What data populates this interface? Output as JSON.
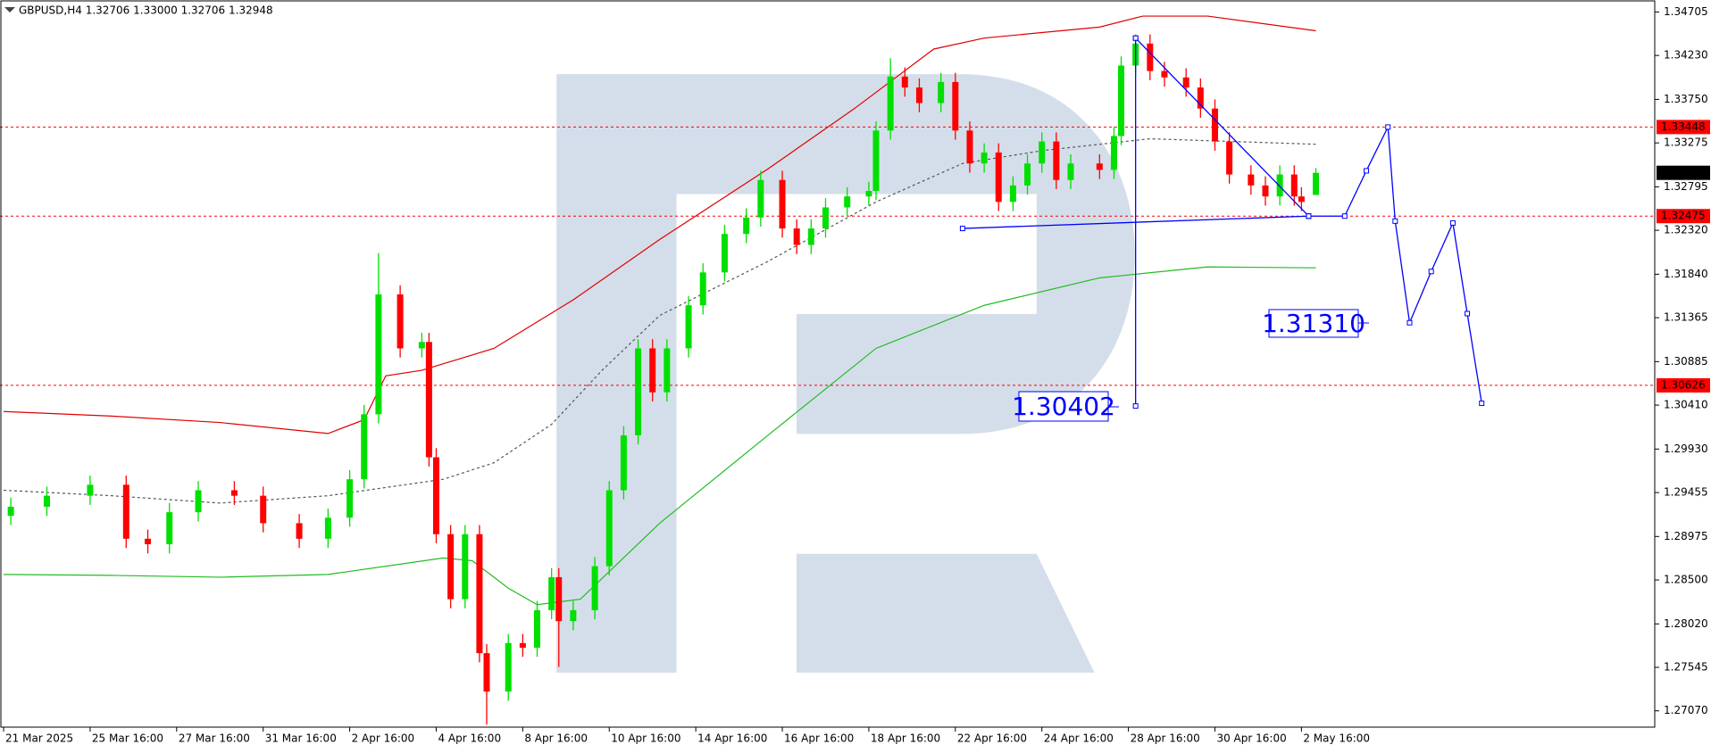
{
  "chart_data": {
    "type": "candlestick",
    "title": "GBPUSD,H4  1.32706 1.33000 1.32706 1.32948",
    "up_color": "#00e000",
    "down_color": "#ff0000",
    "x": [
      1,
      6,
      12,
      17,
      20,
      23,
      27,
      32,
      36,
      41,
      45,
      48,
      50,
      52,
      55,
      58,
      59,
      60,
      62,
      64,
      66,
      67,
      70,
      72,
      74,
      76,
      77,
      79,
      82,
      84,
      86,
      88,
      90,
      92,
      95,
      97,
      100,
      103,
      105,
      108,
      110,
      112,
      114,
      117,
      120,
      121,
      123,
      125,
      127,
      130,
      132,
      134,
      136,
      138,
      140,
      142,
      144,
      146,
      148,
      152,
      154,
      155,
      157,
      159,
      161,
      164,
      166,
      168,
      170,
      173,
      175,
      177,
      179,
      180,
      182
    ],
    "open": [
      1.292,
      1.293,
      1.2942,
      1.2954,
      1.2895,
      1.2889,
      1.2924,
      1.2948,
      1.2942,
      1.2912,
      1.2895,
      1.2918,
      1.296,
      1.3031,
      1.3162,
      1.3103,
      1.311,
      1.2984,
      1.29,
      1.2829,
      1.29,
      1.277,
      1.2728,
      1.2781,
      1.2776,
      1.2817,
      1.2853,
      1.2805,
      1.2817,
      1.2865,
      1.2948,
      1.3008,
      1.3103,
      1.3055,
      1.3103,
      1.315,
      1.3186,
      1.3228,
      1.3246,
      1.3287,
      1.3234,
      1.3216,
      1.3234,
      1.3257,
      1.3269,
      1.3275,
      1.3341,
      1.34,
      1.3388,
      1.3371,
      1.3394,
      1.3341,
      1.3305,
      1.3317,
      1.3263,
      1.3281,
      1.3305,
      1.3329,
      1.3287,
      1.3305,
      1.3298,
      1.3335,
      1.3412,
      1.3436,
      1.3406,
      1.3399,
      1.3388,
      1.3365,
      1.3329,
      1.3293,
      1.3281,
      1.3269,
      1.3293,
      1.3269,
      1.32706
    ],
    "high": [
      1.294,
      1.2952,
      1.2964,
      1.2964,
      1.2905,
      1.2934,
      1.2958,
      1.2958,
      1.2952,
      1.2922,
      1.2928,
      1.297,
      1.3041,
      1.3207,
      1.3172,
      1.312,
      1.312,
      1.2994,
      1.291,
      1.291,
      1.291,
      1.278,
      1.2791,
      1.2791,
      1.2827,
      1.2863,
      1.2863,
      1.2827,
      1.2875,
      1.2958,
      1.3018,
      1.3113,
      1.3113,
      1.3113,
      1.316,
      1.3196,
      1.3238,
      1.3256,
      1.3297,
      1.3297,
      1.3244,
      1.3244,
      1.3267,
      1.3279,
      1.3285,
      1.3351,
      1.342,
      1.341,
      1.3398,
      1.3404,
      1.3404,
      1.3351,
      1.3327,
      1.3327,
      1.3291,
      1.3315,
      1.3339,
      1.3339,
      1.3315,
      1.3315,
      1.3345,
      1.3422,
      1.3446,
      1.3446,
      1.3416,
      1.3409,
      1.3398,
      1.3375,
      1.3339,
      1.3303,
      1.3291,
      1.3303,
      1.3303,
      1.3279,
      1.33
    ],
    "low": [
      1.291,
      1.292,
      1.2932,
      1.2885,
      1.2879,
      1.2879,
      1.2914,
      1.2932,
      1.2902,
      1.2885,
      1.2885,
      1.2908,
      1.295,
      1.3021,
      1.3093,
      1.3093,
      1.2974,
      1.289,
      1.2819,
      1.2819,
      1.276,
      1.2692,
      1.2718,
      1.2766,
      1.2766,
      1.2807,
      1.2755,
      1.2795,
      1.2807,
      1.2855,
      1.2938,
      1.2998,
      1.3045,
      1.3045,
      1.3093,
      1.314,
      1.3176,
      1.3218,
      1.3236,
      1.3224,
      1.3206,
      1.3206,
      1.3224,
      1.3247,
      1.3259,
      1.3265,
      1.3331,
      1.3378,
      1.3361,
      1.3361,
      1.3331,
      1.3295,
      1.3295,
      1.3253,
      1.3253,
      1.3271,
      1.3295,
      1.3277,
      1.3277,
      1.3288,
      1.3288,
      1.3325,
      1.3402,
      1.3396,
      1.3389,
      1.3378,
      1.3355,
      1.3319,
      1.3283,
      1.3271,
      1.3259,
      1.3259,
      1.3259,
      1.3253,
      1.32706
    ],
    "close": [
      1.293,
      1.2942,
      1.2954,
      1.2895,
      1.2889,
      1.2924,
      1.2948,
      1.2942,
      1.2912,
      1.2895,
      1.2918,
      1.296,
      1.3031,
      1.3162,
      1.3103,
      1.311,
      1.2984,
      1.29,
      1.2829,
      1.29,
      1.277,
      1.2728,
      1.2781,
      1.2776,
      1.2817,
      1.2853,
      1.2805,
      1.2817,
      1.2865,
      1.2948,
      1.3008,
      1.3103,
      1.3055,
      1.3103,
      1.315,
      1.3186,
      1.3228,
      1.3246,
      1.3287,
      1.3234,
      1.3216,
      1.3234,
      1.3257,
      1.3269,
      1.3275,
      1.3341,
      1.34,
      1.3388,
      1.3371,
      1.3394,
      1.3341,
      1.3305,
      1.3317,
      1.3263,
      1.3281,
      1.3305,
      1.3329,
      1.3287,
      1.3305,
      1.3298,
      1.3335,
      1.3412,
      1.3436,
      1.3406,
      1.3399,
      1.3388,
      1.3365,
      1.3329,
      1.3293,
      1.3281,
      1.3269,
      1.3293,
      1.3269,
      1.3263,
      1.32948
    ],
    "bands": [
      {
        "color": "#e00000",
        "dashed": false,
        "x": [
          0,
          15,
          30,
          45,
          50,
          53,
          58,
          68,
          79,
          91,
          106,
          118,
          129,
          136,
          152,
          158,
          167,
          182
        ],
        "values": [
          1.3034,
          1.3029,
          1.3022,
          1.301,
          1.3025,
          1.3073,
          1.3079,
          1.3103,
          1.3156,
          1.3222,
          1.3299,
          1.3365,
          1.343,
          1.3442,
          1.3454,
          1.3466,
          1.3466,
          1.345
        ]
      },
      {
        "color": "#555555",
        "dashed": true,
        "x": [
          0,
          15,
          30,
          45,
          61,
          68,
          76,
          83,
          91,
          106,
          121,
          133,
          144,
          159,
          182
        ],
        "values": [
          1.2948,
          1.2942,
          1.2934,
          1.2942,
          1.296,
          1.2978,
          1.302,
          1.3079,
          1.3139,
          1.3198,
          1.3263,
          1.3305,
          1.3319,
          1.3332,
          1.3326
        ]
      },
      {
        "color": "#22bb22",
        "dashed": false,
        "x": [
          0,
          15,
          30,
          45,
          61,
          65,
          70,
          74,
          80,
          91,
          106,
          121,
          136,
          152,
          167,
          182
        ],
        "values": [
          1.2856,
          1.2855,
          1.2853,
          1.2856,
          1.2874,
          1.2871,
          1.2841,
          1.2823,
          1.2829,
          1.2912,
          1.3008,
          1.3103,
          1.315,
          1.318,
          1.3192,
          1.3191
        ]
      }
    ],
    "trendlines": [
      {
        "color": "#0000ff",
        "x": [
          133,
          181
        ],
        "values": [
          1.3234,
          1.32475
        ]
      },
      {
        "color": "#0000ff",
        "x": [
          157,
          181
        ],
        "values": [
          1.3442,
          1.32475
        ]
      },
      {
        "color": "#0000ff",
        "x": [
          157,
          157
        ],
        "values": [
          1.3442,
          1.304
        ]
      }
    ],
    "forecast": {
      "color": "#0000ff",
      "x": [
        181,
        186,
        189,
        192,
        193,
        195,
        198,
        201,
        203,
        205
      ],
      "values": [
        1.32475,
        1.32475,
        1.3297,
        1.33448,
        1.3242,
        1.3131,
        1.3187,
        1.324,
        1.3141,
        1.3043
      ]
    },
    "levels": [
      1.33448,
      1.32475,
      1.30626
    ],
    "level_color": "#ff0000",
    "annotations": [
      "1.30402",
      "1.31310"
    ],
    "xlim": [
      -0.5,
      229
    ],
    "ylim": [
      1.26892,
      1.34836
    ],
    "xticks": [
      {
        "value": 0,
        "label": "21 Mar 2025"
      },
      {
        "value": 12,
        "label": "25 Mar 16:00"
      },
      {
        "value": 24,
        "label": "27 Mar 16:00"
      },
      {
        "value": 36,
        "label": "31 Mar 16:00"
      },
      {
        "value": 48,
        "label": "2 Apr 16:00"
      },
      {
        "value": 60,
        "label": "4 Apr 16:00"
      },
      {
        "value": 72,
        "label": "8 Apr 16:00"
      },
      {
        "value": 84,
        "label": "10 Apr 16:00"
      },
      {
        "value": 96,
        "label": "14 Apr 16:00"
      },
      {
        "value": 108,
        "label": "16 Apr 16:00"
      },
      {
        "value": 120,
        "label": "18 Apr 16:00"
      },
      {
        "value": 132,
        "label": "22 Apr 16:00"
      },
      {
        "value": 144,
        "label": "24 Apr 16:00"
      },
      {
        "value": 156,
        "label": "28 Apr 16:00"
      },
      {
        "value": 168,
        "label": "30 Apr 16:00"
      },
      {
        "value": 180,
        "label": "2 May 16:00"
      }
    ],
    "yticks": [
      1.34705,
      {
        "value": 1.3423,
        "label": "1.34230"
      },
      {
        "value": 1.3375,
        "label": "1.33750"
      },
      1.33275,
      1.32795,
      {
        "value": 1.3232,
        "label": "1.32320"
      },
      {
        "value": 1.3184,
        "label": "1.31840"
      },
      1.31365,
      1.30885,
      {
        "value": 1.3041,
        "label": "1.30410"
      },
      {
        "value": 1.2993,
        "label": "1.29930"
      },
      1.29455,
      1.28975,
      {
        "value": 1.285,
        "label": "1.28500"
      },
      {
        "value": 1.2802,
        "label": "1.28020"
      },
      1.27545,
      {
        "value": 1.2707,
        "label": "1.27070"
      }
    ]
  }
}
